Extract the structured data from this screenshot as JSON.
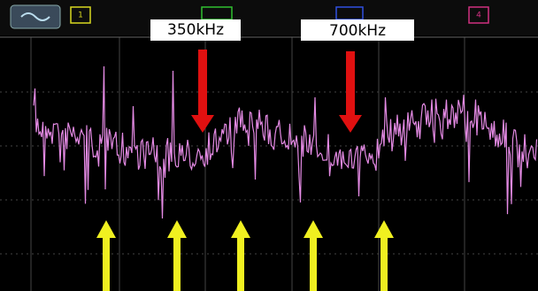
{
  "header": {
    "channels": [
      "1",
      "4"
    ]
  },
  "annotations": {
    "labels": [
      "350kHz",
      "700kHz"
    ]
  }
}
